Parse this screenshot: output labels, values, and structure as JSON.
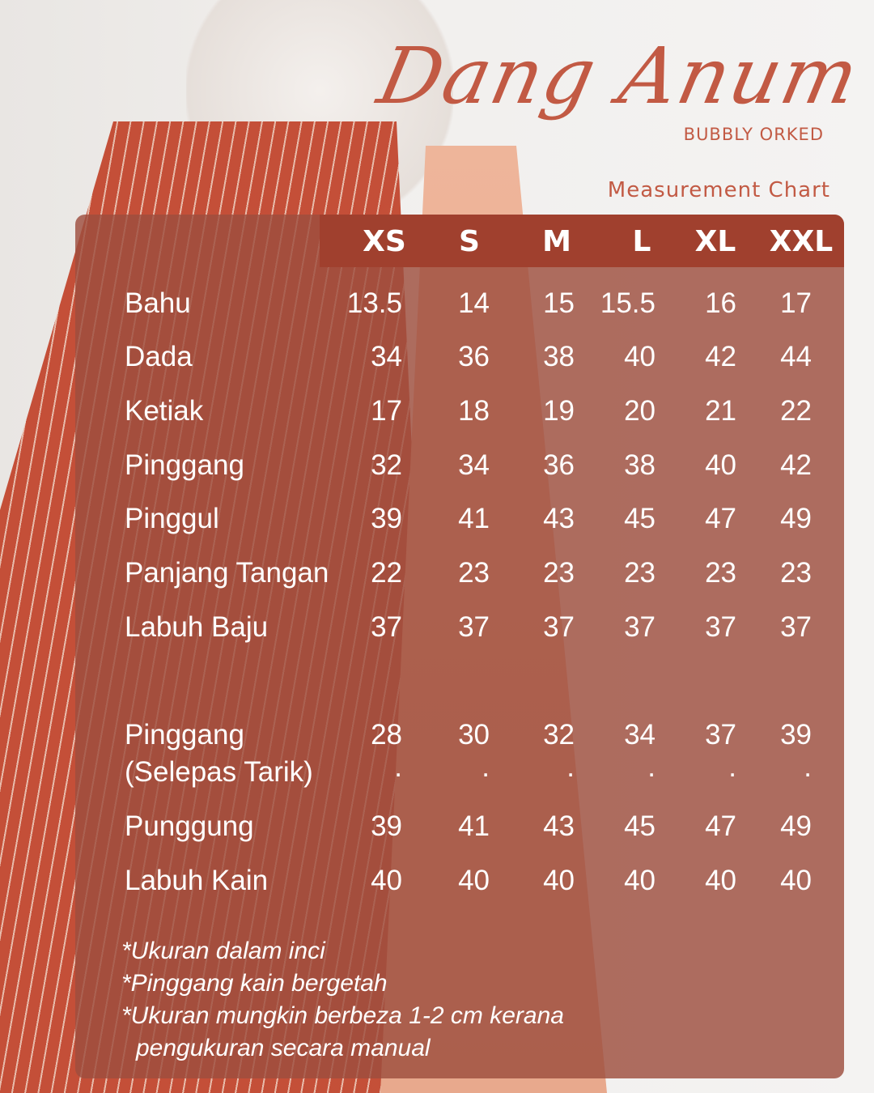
{
  "brand": {
    "name": "Dang Anum",
    "subtitle": "BUBBLY ORKED",
    "chart_title": "Measurement Chart",
    "accent": "#c25a44",
    "header_color": "#a0402e"
  },
  "sizes": [
    "XS",
    "S",
    "M",
    "L",
    "XL",
    "XXL"
  ],
  "rows": [
    {
      "label": "Bahu",
      "values": [
        "13.5",
        "14",
        "15",
        "15.5",
        "16",
        "17"
      ]
    },
    {
      "label": "Dada",
      "values": [
        "34",
        "36",
        "38",
        "40",
        "42",
        "44"
      ]
    },
    {
      "label": "Ketiak",
      "values": [
        "17",
        "18",
        "19",
        "20",
        "21",
        "22"
      ]
    },
    {
      "label": "Pinggang",
      "values": [
        "32",
        "34",
        "36",
        "38",
        "40",
        "42"
      ]
    },
    {
      "label": "Pinggul",
      "values": [
        "39",
        "41",
        "43",
        "45",
        "47",
        "49"
      ]
    },
    {
      "label": "Panjang Tangan",
      "values": [
        "22",
        "23",
        "23",
        "23",
        "23",
        "23"
      ]
    },
    {
      "label": "Labuh Baju",
      "values": [
        "37",
        "37",
        "37",
        "37",
        "37",
        "37"
      ]
    }
  ],
  "rows2": [
    {
      "label": "Pinggang",
      "label2": "(Selepas Tarik)",
      "values": [
        "28",
        "30",
        "32",
        "34",
        "37",
        "39"
      ],
      "values2": [
        ".",
        ".",
        ".",
        ".",
        ".",
        "."
      ]
    },
    {
      "label": "Punggung",
      "values": [
        "39",
        "41",
        "43",
        "45",
        "47",
        "49"
      ]
    },
    {
      "label": "Labuh Kain",
      "values": [
        "40",
        "40",
        "40",
        "40",
        "40",
        "40"
      ]
    }
  ],
  "notes": [
    "*Ukuran dalam inci",
    "*Pinggang kain bergetah",
    "*Ukuran mungkin berbeza 1-2 cm kerana",
    "pengukuran secara manual"
  ]
}
